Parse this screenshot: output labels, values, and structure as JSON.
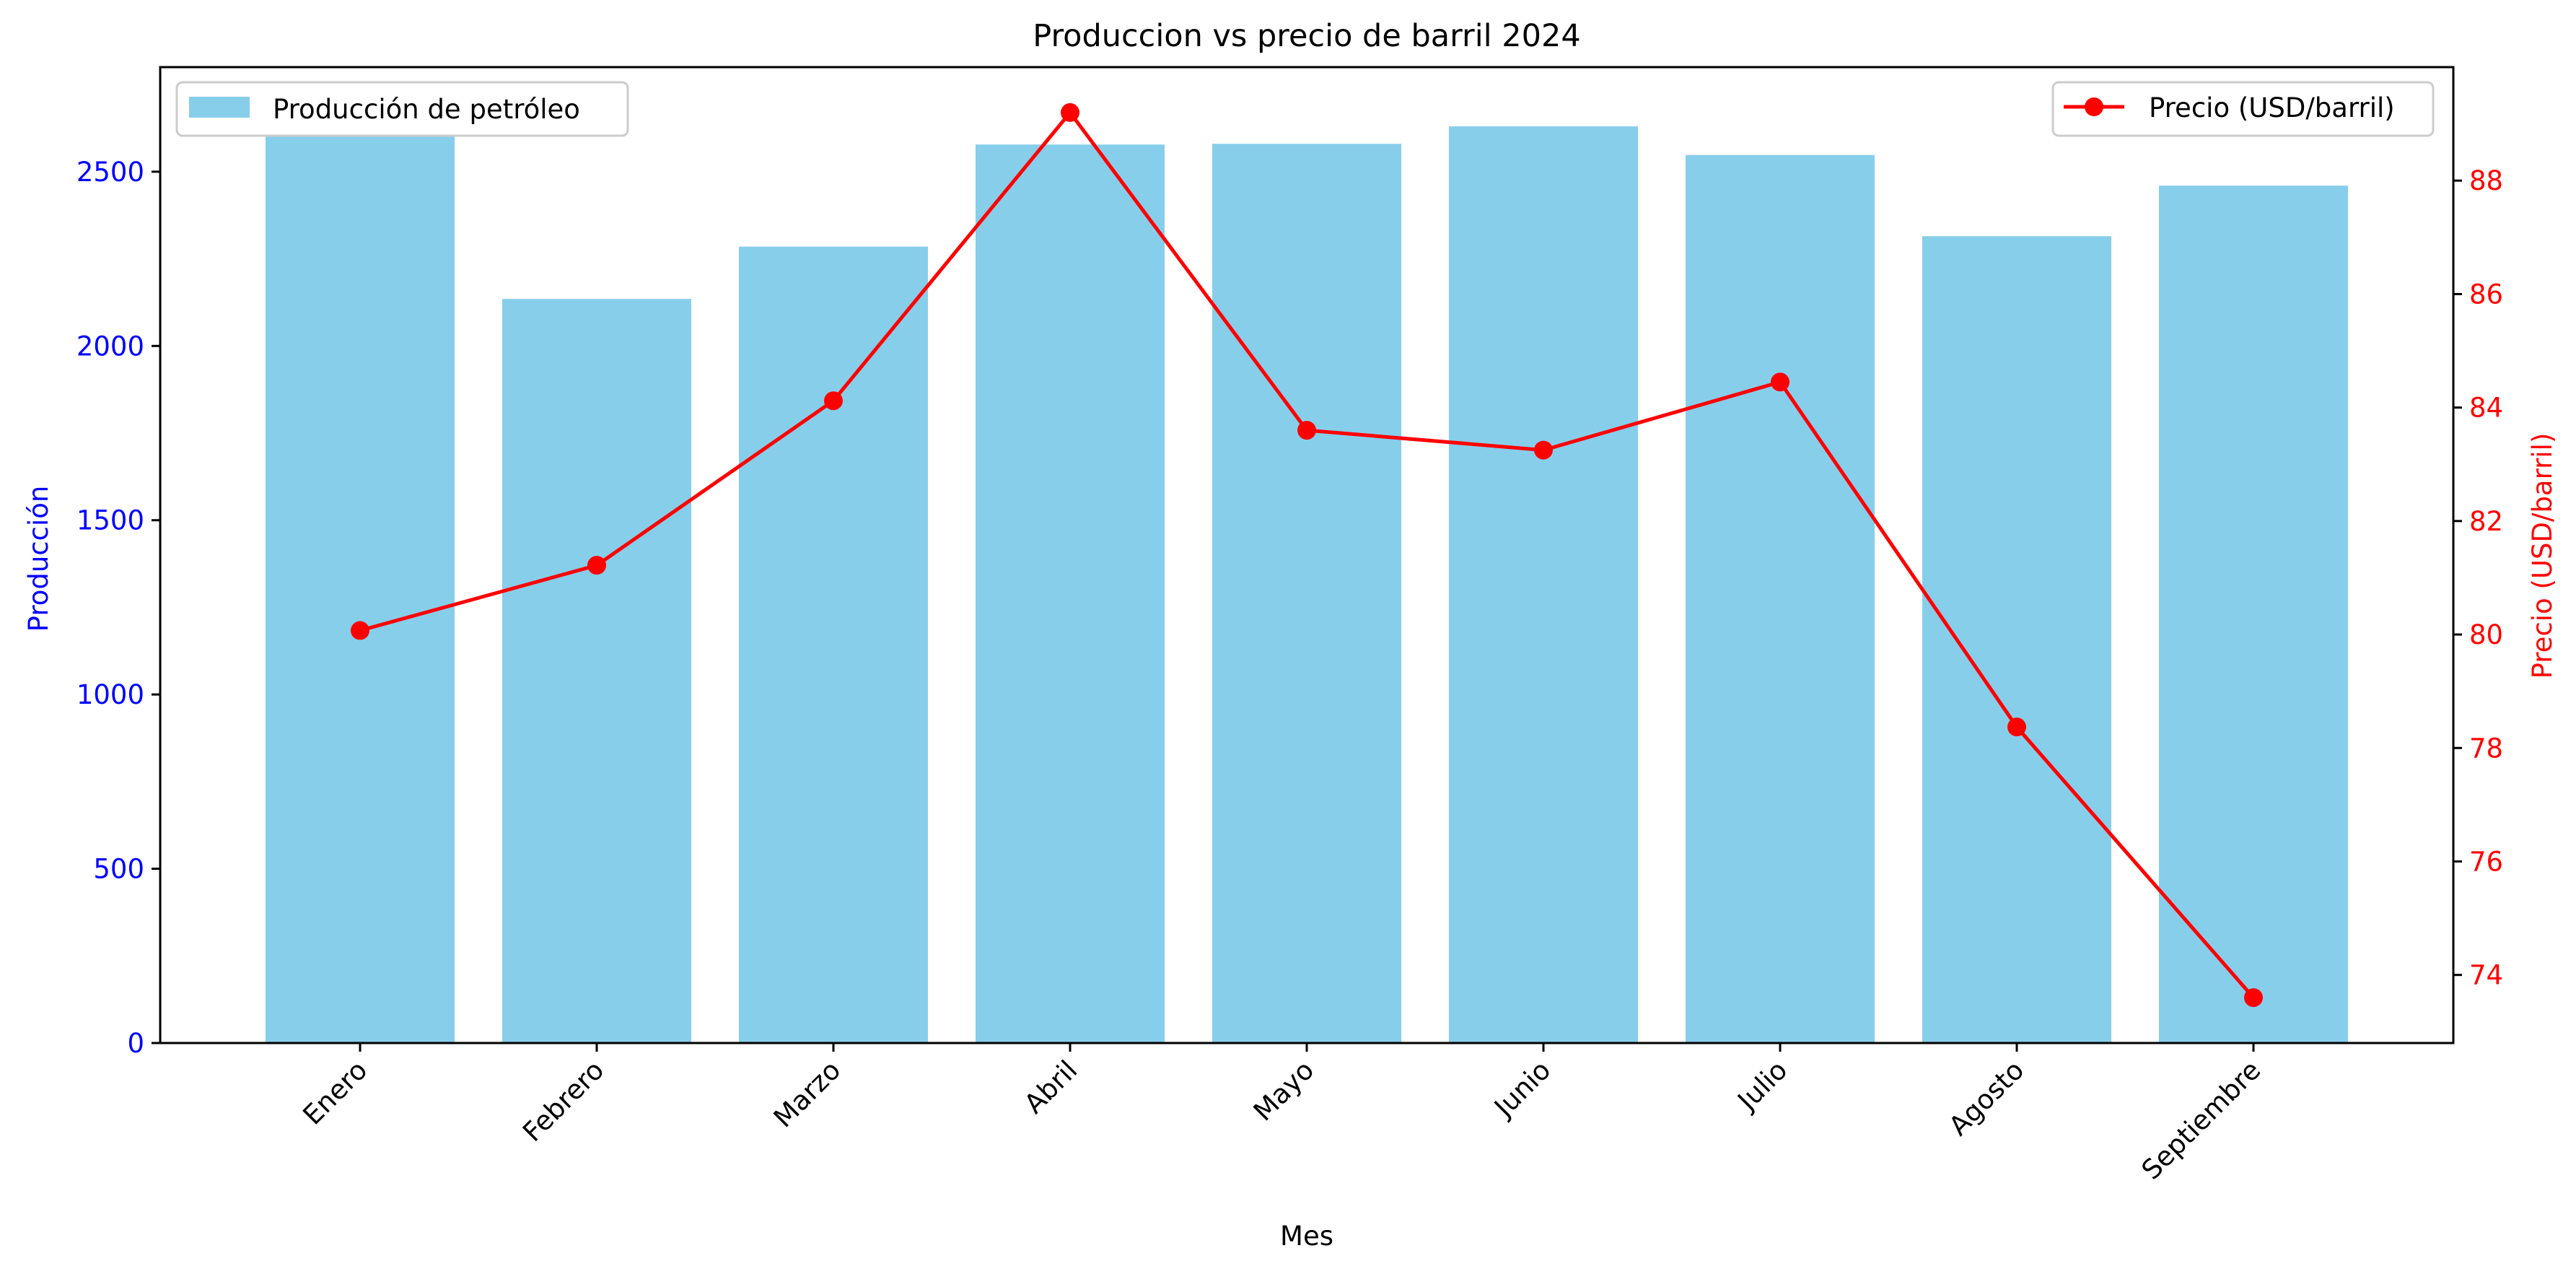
{
  "chart_data": {
    "type": "bar",
    "title": "Produccion vs precio de barril 2024",
    "xlabel": "Mes",
    "ylabel": "Producción",
    "y2label": "Precio (USD/barril)",
    "categories": [
      "Enero",
      "Febrero",
      "Marzo",
      "Abril",
      "Mayo",
      "Junio",
      "Julio",
      "Agosto",
      "Septiembre"
    ],
    "series": [
      {
        "name": "Producción de petróleo",
        "type": "bar",
        "axis": "left",
        "color": "#87CEEB",
        "values": [
          2690,
          2135,
          2285,
          2578,
          2580,
          2630,
          2548,
          2315,
          2460
        ]
      },
      {
        "name": "Precio (USD/barril)",
        "type": "line",
        "axis": "right",
        "color": "#FF0000",
        "values": [
          80.07,
          81.22,
          84.12,
          89.2,
          83.6,
          83.25,
          84.45,
          78.37,
          73.6
        ]
      }
    ],
    "ylim": [
      0,
      2800
    ],
    "y_ticks": [
      0,
      500,
      1000,
      1500,
      2000,
      2500
    ],
    "y_tick_color": "#0000FF",
    "y2lim": [
      72.8,
      90
    ],
    "y2_ticks": [
      74,
      76,
      78,
      80,
      82,
      84,
      86,
      88
    ],
    "y2_tick_color": "#FF0000",
    "grid": false,
    "legends": [
      {
        "series": 0,
        "placement": "upper-left"
      },
      {
        "series": 1,
        "placement": "upper-right"
      }
    ]
  }
}
